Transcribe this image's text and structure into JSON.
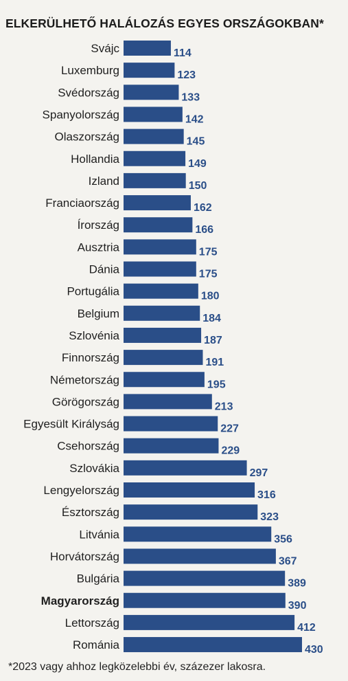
{
  "chart_data": {
    "type": "bar",
    "orientation": "horizontal",
    "title": "ELKERÜLHETŐ HALÁLOZÁS EGYES ORSZÁGOKBAN*",
    "categories": [
      "Svájc",
      "Luxemburg",
      "Svédország",
      "Spanyolország",
      "Olaszország",
      "Hollandia",
      "Izland",
      "Franciaország",
      "Írország",
      "Ausztria",
      "Dánia",
      "Portugália",
      "Belgium",
      "Szlovénia",
      "Finnország",
      "Németország",
      "Görögország",
      "Egyesült Királyság",
      "Csehország",
      "Szlovákia",
      "Lengyelország",
      "Észtország",
      "Litvánia",
      "Horvátország",
      "Bulgária",
      "Magyarország",
      "Lettország",
      "Románia"
    ],
    "values": [
      114,
      123,
      133,
      142,
      145,
      149,
      150,
      162,
      166,
      175,
      175,
      180,
      184,
      187,
      191,
      195,
      213,
      227,
      229,
      297,
      316,
      323,
      356,
      367,
      389,
      390,
      412,
      430
    ],
    "highlighted_category": "Magyarország",
    "footnote": "*2023 vagy ahhoz legközelebbi év, százezer lakosra.",
    "bar_color": "#2a4e88",
    "label_color": "#2a4e88",
    "xlabel": "",
    "ylabel": ""
  }
}
